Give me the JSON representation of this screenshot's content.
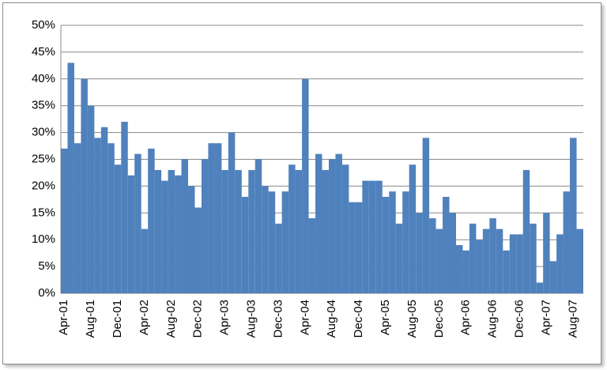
{
  "chart_data": {
    "type": "bar",
    "categories": [
      "Apr-01",
      null,
      null,
      null,
      "Aug-01",
      null,
      null,
      null,
      "Dec-01",
      null,
      null,
      null,
      "Apr-02",
      null,
      null,
      null,
      "Aug-02",
      null,
      null,
      null,
      "Dec-02",
      null,
      null,
      null,
      "Apr-03",
      null,
      null,
      null,
      "Aug-03",
      null,
      null,
      null,
      "Dec-03",
      null,
      null,
      null,
      "Apr-04",
      null,
      null,
      null,
      "Aug-04",
      null,
      null,
      null,
      "Dec-04",
      null,
      null,
      null,
      "Apr-05",
      null,
      null,
      null,
      "Aug-05",
      null,
      null,
      null,
      "Dec-05",
      null,
      null,
      null,
      "Apr-06",
      null,
      null,
      null,
      "Aug-06",
      null,
      null,
      null,
      "Dec-06",
      null,
      null,
      null,
      "Apr-07",
      null,
      null,
      null,
      "Aug-07",
      null
    ],
    "values": [
      27,
      43,
      28,
      40,
      35,
      29,
      31,
      28,
      24,
      32,
      22,
      26,
      12,
      27,
      23,
      21,
      23,
      22,
      25,
      20,
      16,
      25,
      28,
      28,
      23,
      30,
      23,
      18,
      23,
      25,
      20,
      19,
      13,
      19,
      24,
      23,
      40,
      14,
      26,
      23,
      25,
      26,
      24,
      17,
      17,
      21,
      21,
      21,
      18,
      19,
      13,
      19,
      24,
      15,
      29,
      14,
      12,
      18,
      15,
      9,
      8,
      13,
      10,
      12,
      14,
      12,
      8,
      11,
      11,
      23,
      13,
      2,
      15,
      6,
      11,
      19,
      29,
      12
    ],
    "color": "#4f81bd",
    "ylim": [
      0,
      50
    ],
    "yticks": [
      {
        "value": 0,
        "label": "0%"
      },
      {
        "value": 5,
        "label": "5%"
      },
      {
        "value": 10,
        "label": "10%"
      },
      {
        "value": 15,
        "label": "15%"
      },
      {
        "value": 20,
        "label": "20%"
      },
      {
        "value": 25,
        "label": "25%"
      },
      {
        "value": 30,
        "label": "30%"
      },
      {
        "value": 35,
        "label": "35%"
      },
      {
        "value": 40,
        "label": "40%"
      },
      {
        "value": 45,
        "label": "45%"
      },
      {
        "value": 50,
        "label": "50%"
      }
    ],
    "grid": true
  }
}
